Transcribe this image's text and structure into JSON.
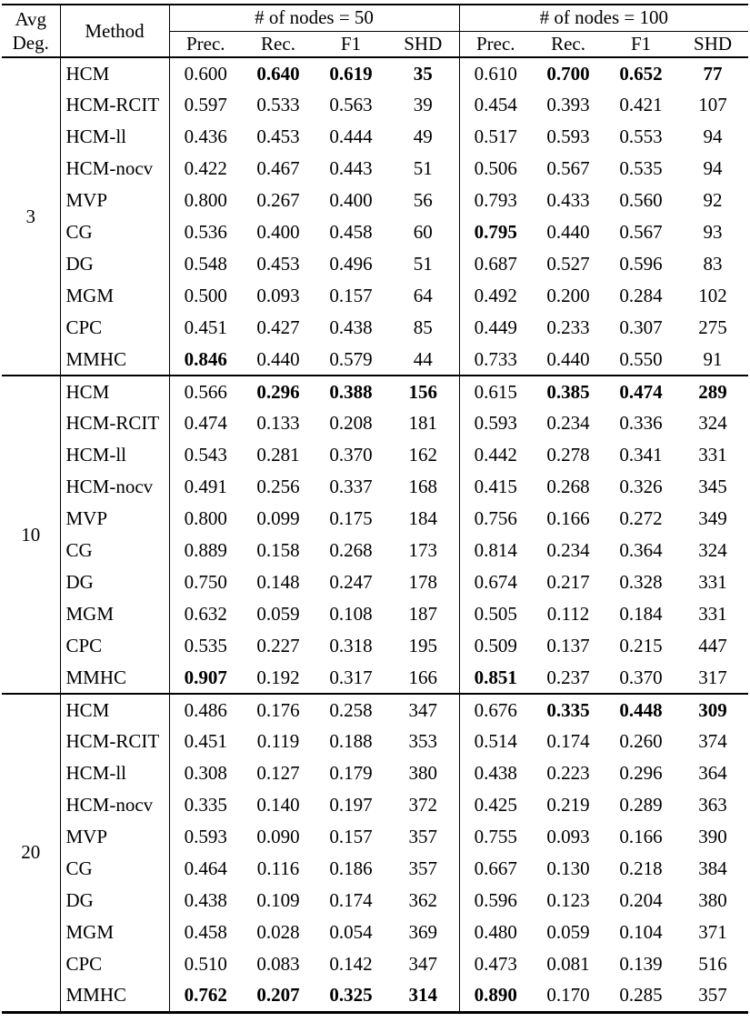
{
  "table": {
    "header": {
      "avg_line1": "Avg",
      "avg_line2": "Deg.",
      "method": "Method",
      "nodes50": "# of nodes = 50",
      "nodes100": "# of nodes = 100",
      "metrics": [
        "Prec.",
        "Rec.",
        "F1",
        "SHD"
      ]
    },
    "groups": [
      {
        "avg_degree": "3",
        "rows": [
          {
            "method": "HCM",
            "values": [
              {
                "v": "0.600"
              },
              {
                "v": "0.640",
                "b": true
              },
              {
                "v": "0.619",
                "b": true
              },
              {
                "v": "35",
                "b": true
              },
              {
                "v": "0.610"
              },
              {
                "v": "0.700",
                "b": true
              },
              {
                "v": "0.652",
                "b": true
              },
              {
                "v": "77",
                "b": true
              }
            ]
          },
          {
            "method": "HCM-RCIT",
            "values": [
              {
                "v": "0.597"
              },
              {
                "v": "0.533"
              },
              {
                "v": "0.563"
              },
              {
                "v": "39"
              },
              {
                "v": "0.454"
              },
              {
                "v": "0.393"
              },
              {
                "v": "0.421"
              },
              {
                "v": "107"
              }
            ]
          },
          {
            "method": "HCM-ll",
            "values": [
              {
                "v": "0.436"
              },
              {
                "v": "0.453"
              },
              {
                "v": "0.444"
              },
              {
                "v": "49"
              },
              {
                "v": "0.517"
              },
              {
                "v": "0.593"
              },
              {
                "v": "0.553"
              },
              {
                "v": "94"
              }
            ]
          },
          {
            "method": "HCM-nocv",
            "values": [
              {
                "v": "0.422"
              },
              {
                "v": "0.467"
              },
              {
                "v": "0.443"
              },
              {
                "v": "51"
              },
              {
                "v": "0.506"
              },
              {
                "v": "0.567"
              },
              {
                "v": "0.535"
              },
              {
                "v": "94"
              }
            ]
          },
          {
            "method": "MVP",
            "values": [
              {
                "v": "0.800"
              },
              {
                "v": "0.267"
              },
              {
                "v": "0.400"
              },
              {
                "v": "56"
              },
              {
                "v": "0.793"
              },
              {
                "v": "0.433"
              },
              {
                "v": "0.560"
              },
              {
                "v": "92"
              }
            ]
          },
          {
            "method": "CG",
            "values": [
              {
                "v": "0.536"
              },
              {
                "v": "0.400"
              },
              {
                "v": "0.458"
              },
              {
                "v": "60"
              },
              {
                "v": "0.795",
                "b": true
              },
              {
                "v": "0.440"
              },
              {
                "v": "0.567"
              },
              {
                "v": "93"
              }
            ]
          },
          {
            "method": "DG",
            "values": [
              {
                "v": "0.548"
              },
              {
                "v": "0.453"
              },
              {
                "v": "0.496"
              },
              {
                "v": "51"
              },
              {
                "v": "0.687"
              },
              {
                "v": "0.527"
              },
              {
                "v": "0.596"
              },
              {
                "v": "83"
              }
            ]
          },
          {
            "method": "MGM",
            "values": [
              {
                "v": "0.500"
              },
              {
                "v": "0.093"
              },
              {
                "v": "0.157"
              },
              {
                "v": "64"
              },
              {
                "v": "0.492"
              },
              {
                "v": "0.200"
              },
              {
                "v": "0.284"
              },
              {
                "v": "102"
              }
            ]
          },
          {
            "method": "CPC",
            "values": [
              {
                "v": "0.451"
              },
              {
                "v": "0.427"
              },
              {
                "v": "0.438"
              },
              {
                "v": "85"
              },
              {
                "v": "0.449"
              },
              {
                "v": "0.233"
              },
              {
                "v": "0.307"
              },
              {
                "v": "275"
              }
            ]
          },
          {
            "method": "MMHC",
            "values": [
              {
                "v": "0.846",
                "b": true
              },
              {
                "v": "0.440"
              },
              {
                "v": "0.579"
              },
              {
                "v": "44"
              },
              {
                "v": "0.733"
              },
              {
                "v": "0.440"
              },
              {
                "v": "0.550"
              },
              {
                "v": "91"
              }
            ]
          }
        ]
      },
      {
        "avg_degree": "10",
        "rows": [
          {
            "method": "HCM",
            "values": [
              {
                "v": "0.566"
              },
              {
                "v": "0.296",
                "b": true
              },
              {
                "v": "0.388",
                "b": true
              },
              {
                "v": "156",
                "b": true
              },
              {
                "v": "0.615"
              },
              {
                "v": "0.385",
                "b": true
              },
              {
                "v": "0.474",
                "b": true
              },
              {
                "v": "289",
                "b": true
              }
            ]
          },
          {
            "method": "HCM-RCIT",
            "values": [
              {
                "v": "0.474"
              },
              {
                "v": "0.133"
              },
              {
                "v": "0.208"
              },
              {
                "v": "181"
              },
              {
                "v": "0.593"
              },
              {
                "v": "0.234"
              },
              {
                "v": "0.336"
              },
              {
                "v": "324"
              }
            ]
          },
          {
            "method": "HCM-ll",
            "values": [
              {
                "v": "0.543"
              },
              {
                "v": "0.281"
              },
              {
                "v": "0.370"
              },
              {
                "v": "162"
              },
              {
                "v": "0.442"
              },
              {
                "v": "0.278"
              },
              {
                "v": "0.341"
              },
              {
                "v": "331"
              }
            ]
          },
          {
            "method": "HCM-nocv",
            "values": [
              {
                "v": "0.491"
              },
              {
                "v": "0.256"
              },
              {
                "v": "0.337"
              },
              {
                "v": "168"
              },
              {
                "v": "0.415"
              },
              {
                "v": "0.268"
              },
              {
                "v": "0.326"
              },
              {
                "v": "345"
              }
            ]
          },
          {
            "method": "MVP",
            "values": [
              {
                "v": "0.800"
              },
              {
                "v": "0.099"
              },
              {
                "v": "0.175"
              },
              {
                "v": "184"
              },
              {
                "v": "0.756"
              },
              {
                "v": "0.166"
              },
              {
                "v": "0.272"
              },
              {
                "v": "349"
              }
            ]
          },
          {
            "method": "CG",
            "values": [
              {
                "v": "0.889"
              },
              {
                "v": "0.158"
              },
              {
                "v": "0.268"
              },
              {
                "v": "173"
              },
              {
                "v": "0.814"
              },
              {
                "v": "0.234"
              },
              {
                "v": "0.364"
              },
              {
                "v": "324"
              }
            ]
          },
          {
            "method": "DG",
            "values": [
              {
                "v": "0.750"
              },
              {
                "v": "0.148"
              },
              {
                "v": "0.247"
              },
              {
                "v": "178"
              },
              {
                "v": "0.674"
              },
              {
                "v": "0.217"
              },
              {
                "v": "0.328"
              },
              {
                "v": "331"
              }
            ]
          },
          {
            "method": "MGM",
            "values": [
              {
                "v": "0.632"
              },
              {
                "v": "0.059"
              },
              {
                "v": "0.108"
              },
              {
                "v": "187"
              },
              {
                "v": "0.505"
              },
              {
                "v": "0.112"
              },
              {
                "v": "0.184"
              },
              {
                "v": "331"
              }
            ]
          },
          {
            "method": "CPC",
            "values": [
              {
                "v": "0.535"
              },
              {
                "v": "0.227"
              },
              {
                "v": "0.318"
              },
              {
                "v": "195"
              },
              {
                "v": "0.509"
              },
              {
                "v": "0.137"
              },
              {
                "v": "0.215"
              },
              {
                "v": "447"
              }
            ]
          },
          {
            "method": "MMHC",
            "values": [
              {
                "v": "0.907",
                "b": true
              },
              {
                "v": "0.192"
              },
              {
                "v": "0.317"
              },
              {
                "v": "166"
              },
              {
                "v": "0.851",
                "b": true
              },
              {
                "v": "0.237"
              },
              {
                "v": "0.370"
              },
              {
                "v": "317"
              }
            ]
          }
        ]
      },
      {
        "avg_degree": "20",
        "rows": [
          {
            "method": "HCM",
            "values": [
              {
                "v": "0.486"
              },
              {
                "v": "0.176"
              },
              {
                "v": "0.258"
              },
              {
                "v": "347"
              },
              {
                "v": "0.676"
              },
              {
                "v": "0.335",
                "b": true
              },
              {
                "v": "0.448",
                "b": true
              },
              {
                "v": "309",
                "b": true
              }
            ]
          },
          {
            "method": "HCM-RCIT",
            "values": [
              {
                "v": "0.451"
              },
              {
                "v": "0.119"
              },
              {
                "v": "0.188"
              },
              {
                "v": "353"
              },
              {
                "v": "0.514"
              },
              {
                "v": "0.174"
              },
              {
                "v": "0.260"
              },
              {
                "v": "374"
              }
            ]
          },
          {
            "method": "HCM-ll",
            "values": [
              {
                "v": "0.308"
              },
              {
                "v": "0.127"
              },
              {
                "v": "0.179"
              },
              {
                "v": "380"
              },
              {
                "v": "0.438"
              },
              {
                "v": "0.223"
              },
              {
                "v": "0.296"
              },
              {
                "v": "364"
              }
            ]
          },
          {
            "method": "HCM-nocv",
            "values": [
              {
                "v": "0.335"
              },
              {
                "v": "0.140"
              },
              {
                "v": "0.197"
              },
              {
                "v": "372"
              },
              {
                "v": "0.425"
              },
              {
                "v": "0.219"
              },
              {
                "v": "0.289"
              },
              {
                "v": "363"
              }
            ]
          },
          {
            "method": "MVP",
            "values": [
              {
                "v": "0.593"
              },
              {
                "v": "0.090"
              },
              {
                "v": "0.157"
              },
              {
                "v": "357"
              },
              {
                "v": "0.755"
              },
              {
                "v": "0.093"
              },
              {
                "v": "0.166"
              },
              {
                "v": "390"
              }
            ]
          },
          {
            "method": "CG",
            "values": [
              {
                "v": "0.464"
              },
              {
                "v": "0.116"
              },
              {
                "v": "0.186"
              },
              {
                "v": "357"
              },
              {
                "v": "0.667"
              },
              {
                "v": "0.130"
              },
              {
                "v": "0.218"
              },
              {
                "v": "384"
              }
            ]
          },
          {
            "method": "DG",
            "values": [
              {
                "v": "0.438"
              },
              {
                "v": "0.109"
              },
              {
                "v": "0.174"
              },
              {
                "v": "362"
              },
              {
                "v": "0.596"
              },
              {
                "v": "0.123"
              },
              {
                "v": "0.204"
              },
              {
                "v": "380"
              }
            ]
          },
          {
            "method": "MGM",
            "values": [
              {
                "v": "0.458"
              },
              {
                "v": "0.028"
              },
              {
                "v": "0.054"
              },
              {
                "v": "369"
              },
              {
                "v": "0.480"
              },
              {
                "v": "0.059"
              },
              {
                "v": "0.104"
              },
              {
                "v": "371"
              }
            ]
          },
          {
            "method": "CPC",
            "values": [
              {
                "v": "0.510"
              },
              {
                "v": "0.083"
              },
              {
                "v": "0.142"
              },
              {
                "v": "347"
              },
              {
                "v": "0.473"
              },
              {
                "v": "0.081"
              },
              {
                "v": "0.139"
              },
              {
                "v": "516"
              }
            ]
          },
          {
            "method": "MMHC",
            "values": [
              {
                "v": "0.762",
                "b": true
              },
              {
                "v": "0.207",
                "b": true
              },
              {
                "v": "0.325",
                "b": true
              },
              {
                "v": "314",
                "b": true
              },
              {
                "v": "0.890",
                "b": true
              },
              {
                "v": "0.170"
              },
              {
                "v": "0.285"
              },
              {
                "v": "357"
              }
            ]
          }
        ]
      }
    ]
  }
}
